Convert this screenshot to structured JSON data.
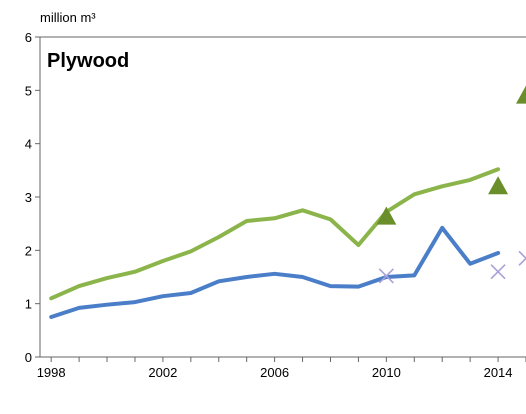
{
  "chart_data": {
    "type": "line",
    "title": "Plywood",
    "ylabel": "million m³",
    "ylim": [
      0,
      6
    ],
    "xlim": [
      1997.6,
      2015
    ],
    "y_ticks": [
      "0",
      "1",
      "2",
      "3",
      "4",
      "5",
      "6"
    ],
    "x_ticks": [
      "1998",
      "2002",
      "2006",
      "2010",
      "2014"
    ],
    "grid": false,
    "series": [
      {
        "color": "#8BB54A",
        "style": "line",
        "x": [
          1998,
          1999,
          2000,
          2001,
          2002,
          2003,
          2004,
          2005,
          2006,
          2007,
          2008,
          2009,
          2010,
          2011,
          2012,
          2013,
          2014
        ],
        "y": [
          1.1,
          1.33,
          1.48,
          1.6,
          1.8,
          1.98,
          2.25,
          2.55,
          2.6,
          2.75,
          2.58,
          2.1,
          2.72,
          3.05,
          3.2,
          3.32,
          3.52
        ]
      },
      {
        "color": "#4A7EC8",
        "style": "line",
        "x": [
          1998,
          1999,
          2000,
          2001,
          2002,
          2003,
          2004,
          2005,
          2006,
          2007,
          2008,
          2009,
          2010,
          2011,
          2012,
          2013,
          2014
        ],
        "y": [
          0.75,
          0.92,
          0.98,
          1.03,
          1.14,
          1.2,
          1.42,
          1.5,
          1.56,
          1.5,
          1.33,
          1.32,
          1.5,
          1.53,
          2.42,
          1.75,
          1.95
        ]
      },
      {
        "color": "#6A8E2A",
        "style": "triangle",
        "x": [
          2010,
          2014,
          2015
        ],
        "y": [
          2.65,
          3.22,
          4.92
        ]
      },
      {
        "color": "#A9A0D8",
        "style": "cross",
        "x": [
          2010,
          2014,
          2015
        ],
        "y": [
          1.52,
          1.6,
          1.85
        ]
      }
    ]
  }
}
